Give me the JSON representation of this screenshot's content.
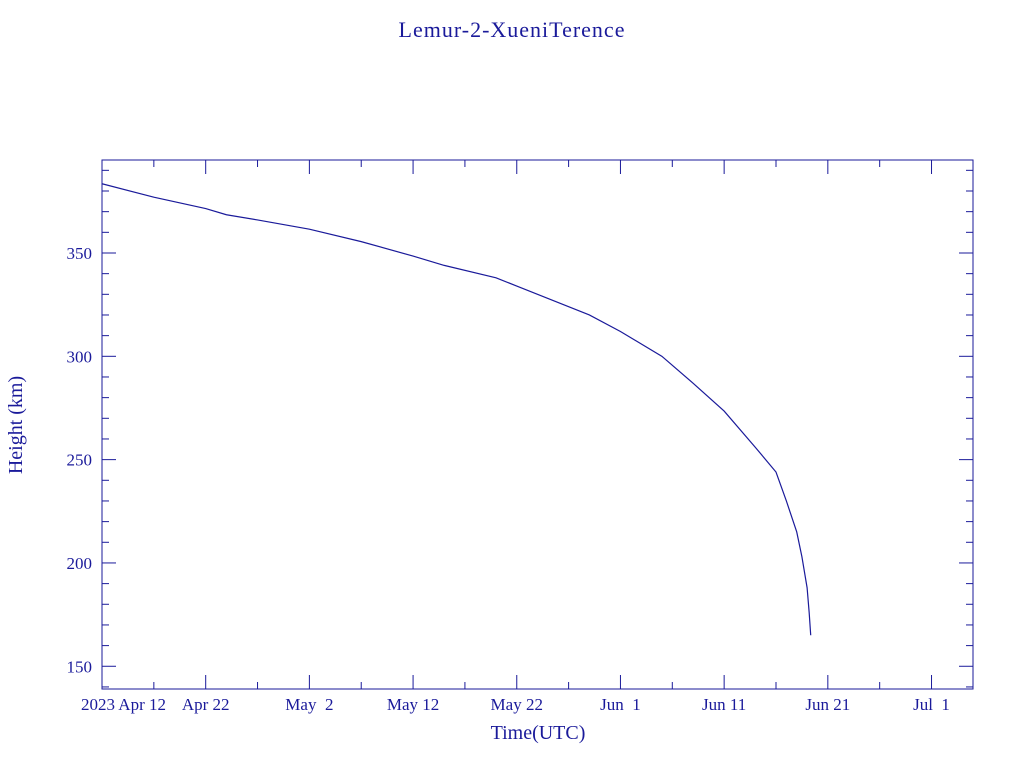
{
  "chart_data": {
    "type": "line",
    "title": "Lemur-2-XueniTerence",
    "xlabel": "Time(UTC)",
    "ylabel": "Height (km)",
    "xlim": [
      "2023-04-12",
      "2023-07-05"
    ],
    "ylim": [
      139,
      395
    ],
    "x_ticks": [
      {
        "date": "2023-04-12",
        "label": "2023 Apr 12"
      },
      {
        "date": "2023-04-22",
        "label": "Apr 22"
      },
      {
        "date": "2023-05-02",
        "label": "May  2"
      },
      {
        "date": "2023-05-12",
        "label": "May 12"
      },
      {
        "date": "2023-05-22",
        "label": "May 22"
      },
      {
        "date": "2023-06-01",
        "label": "Jun  1"
      },
      {
        "date": "2023-06-11",
        "label": "Jun 11"
      },
      {
        "date": "2023-06-21",
        "label": "Jun 21"
      },
      {
        "date": "2023-07-01",
        "label": "Jul  1"
      }
    ],
    "y_ticks": [
      150,
      200,
      250,
      300,
      350
    ],
    "grid": false,
    "colors": {
      "line": "#1a1a9a",
      "text": "#1a1a9a",
      "background": "#ffffff"
    },
    "series": [
      {
        "x": [
          "2023-04-12",
          "2023-04-17",
          "2023-04-22",
          "2023-04-24",
          "2023-04-27",
          "2023-05-02",
          "2023-05-07",
          "2023-05-12",
          "2023-05-15",
          "2023-05-20",
          "2023-05-22",
          "2023-05-25",
          "2023-05-29",
          "2023-06-01",
          "2023-06-05",
          "2023-06-08",
          "2023-06-11",
          "2023-06-14",
          "2023-06-16",
          "2023-06-17",
          "2023-06-18",
          "2023-06-18.5",
          "2023-06-19",
          "2023-06-19.2",
          "2023-06-19.35"
        ],
        "y": [
          383.5,
          377,
          371.5,
          368.5,
          366,
          361.5,
          355.5,
          348.5,
          344,
          338,
          334,
          328,
          320,
          312,
          300,
          287,
          273.5,
          256,
          244,
          230,
          215,
          203,
          188,
          176,
          165
        ]
      }
    ]
  }
}
